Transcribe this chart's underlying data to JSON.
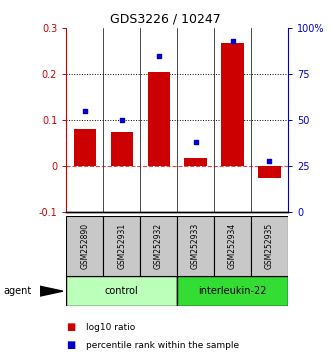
{
  "title": "GDS3226 / 10247",
  "samples": [
    "GSM252890",
    "GSM252931",
    "GSM252932",
    "GSM252933",
    "GSM252934",
    "GSM252935"
  ],
  "log10_ratio": [
    0.082,
    0.075,
    0.205,
    0.018,
    0.268,
    -0.025
  ],
  "percentile_rank": [
    55,
    50,
    85,
    38,
    93,
    28
  ],
  "groups": [
    {
      "label": "control",
      "indices": [
        0,
        1,
        2
      ],
      "color": "#bbffbb"
    },
    {
      "label": "interleukin-22",
      "indices": [
        3,
        4,
        5
      ],
      "color": "#33dd33"
    }
  ],
  "ylim_left": [
    -0.1,
    0.3
  ],
  "ylim_right": [
    0,
    100
  ],
  "yticks_left": [
    -0.1,
    0.0,
    0.1,
    0.2,
    0.3
  ],
  "yticks_right": [
    0,
    25,
    50,
    75,
    100
  ],
  "ytick_labels_left": [
    "-0.1",
    "0",
    "0.1",
    "0.2",
    "0.3"
  ],
  "ytick_labels_right": [
    "0",
    "25",
    "50",
    "75",
    "100%"
  ],
  "hlines": [
    0.1,
    0.2
  ],
  "bar_color": "#cc0000",
  "dot_color": "#0000cc",
  "zero_line_color": "#cc0000",
  "background_color": "#ffffff",
  "agent_label": "agent",
  "legend_items": [
    {
      "color": "#cc0000",
      "label": "log10 ratio"
    },
    {
      "color": "#0000cc",
      "label": "percentile rank within the sample"
    }
  ],
  "sample_box_color": "#c8c8c8",
  "figsize": [
    3.31,
    3.54
  ],
  "dpi": 100
}
